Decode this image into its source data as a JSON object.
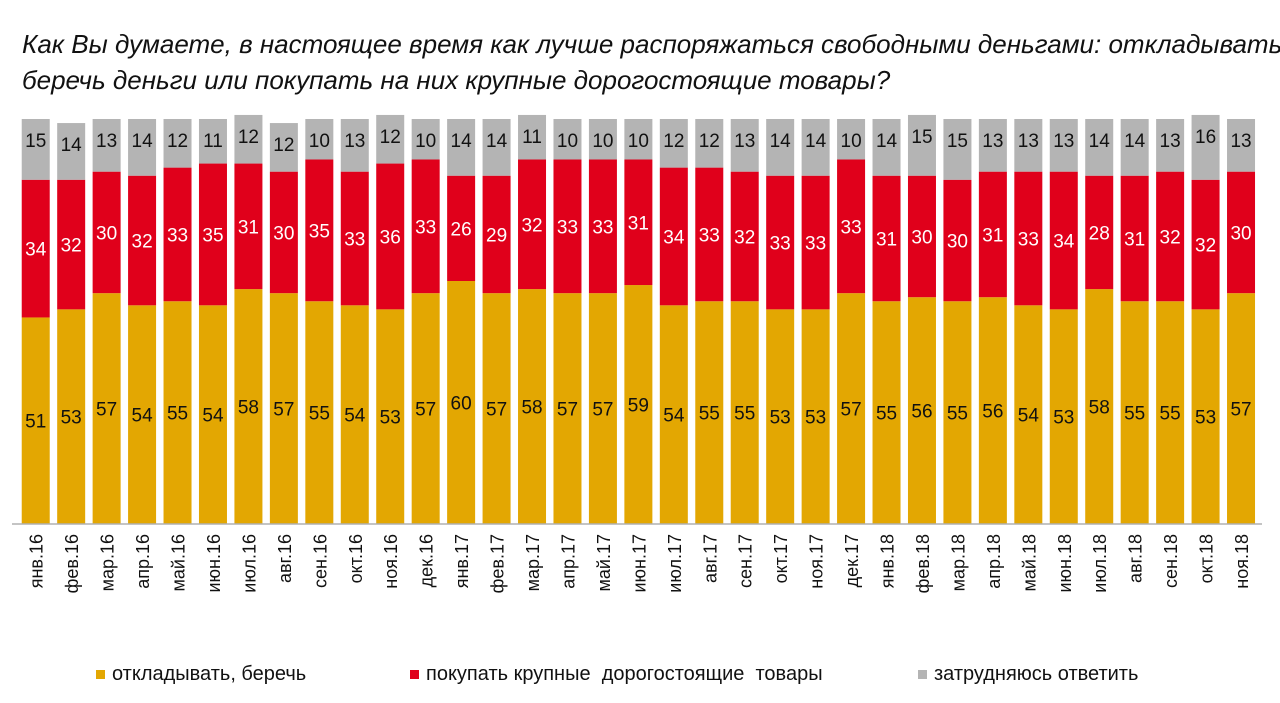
{
  "title_lines": [
    "Как Вы думаете, в настоящее время как лучше распоряжаться свободными деньгами: откладывать,",
    "беречь деньги или покупать на них крупные дорогостоящие товары?"
  ],
  "colors": {
    "save": "#E3A702",
    "buy": "#E0001B",
    "unsure": "#B4B4B4",
    "text_light": "#ffffff",
    "text_dark": "#111111"
  },
  "legend": [
    {
      "label": "откладывать, беречь",
      "color": "#E3A702"
    },
    {
      "label": "покупать крупные  дорогостоящие  товары",
      "color": "#E0001B"
    },
    {
      "label": "затрудняюсь ответить",
      "color": "#B4B4B4"
    }
  ],
  "chart_data": {
    "type": "bar",
    "stacked": true,
    "categories": [
      "янв.16",
      "фев.16",
      "мар.16",
      "апр.16",
      "май.16",
      "июн.16",
      "июл.16",
      "авг.16",
      "сен.16",
      "окт.16",
      "ноя.16",
      "дек.16",
      "янв.17",
      "фев.17",
      "мар.17",
      "апр.17",
      "май.17",
      "июн.17",
      "июл.17",
      "авг.17",
      "сен.17",
      "окт.17",
      "ноя.17",
      "дек.17",
      "янв.18",
      "фев.18",
      "мар.18",
      "апр.18",
      "май.18",
      "июн.18",
      "июл.18",
      "авг.18",
      "сен.18",
      "окт.18",
      "ноя.18"
    ],
    "series": [
      {
        "name": "откладывать, беречь",
        "values": [
          51,
          53,
          57,
          54,
          55,
          54,
          58,
          57,
          55,
          54,
          53,
          57,
          60,
          57,
          58,
          57,
          57,
          59,
          54,
          55,
          55,
          53,
          53,
          57,
          55,
          56,
          55,
          56,
          54,
          53,
          58,
          55,
          55,
          53,
          57
        ]
      },
      {
        "name": "покупать крупные  дорогостоящие  товары",
        "values": [
          34,
          32,
          30,
          32,
          33,
          35,
          31,
          30,
          35,
          33,
          36,
          33,
          26,
          29,
          32,
          33,
          33,
          31,
          34,
          33,
          32,
          33,
          33,
          33,
          31,
          30,
          30,
          31,
          33,
          34,
          28,
          31,
          32,
          32,
          30
        ]
      },
      {
        "name": "затрудняюсь ответить",
        "values": [
          15,
          14,
          13,
          14,
          12,
          11,
          12,
          12,
          10,
          13,
          12,
          10,
          14,
          14,
          11,
          10,
          10,
          10,
          12,
          12,
          13,
          14,
          14,
          10,
          14,
          15,
          15,
          13,
          13,
          13,
          14,
          14,
          13,
          16,
          13
        ]
      }
    ],
    "ylim": [
      0,
      100
    ],
    "grid": false,
    "legend_position": "bottom"
  }
}
